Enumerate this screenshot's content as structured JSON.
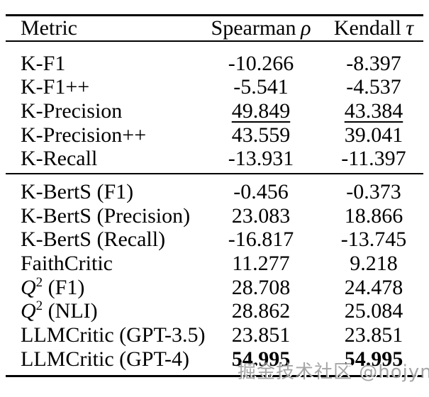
{
  "table": {
    "headers": [
      {
        "label": "Metric",
        "symbol": ""
      },
      {
        "label": "Spearman",
        "symbol": "ρ"
      },
      {
        "label": "Kendall",
        "symbol": "τ"
      }
    ],
    "rows": [
      {
        "metric": {
          "pre": "K-F1",
          "it": "",
          "sup": "",
          "post": ""
        },
        "spearman": "-10.266",
        "kendall": "-8.397",
        "emphasis": "none"
      },
      {
        "metric": {
          "pre": "K-F1++",
          "it": "",
          "sup": "",
          "post": ""
        },
        "spearman": "-5.541",
        "kendall": "-4.537",
        "emphasis": "none"
      },
      {
        "metric": {
          "pre": "K-Precision",
          "it": "",
          "sup": "",
          "post": ""
        },
        "spearman": "49.849",
        "kendall": "43.384",
        "emphasis": "underline"
      },
      {
        "metric": {
          "pre": "K-Precision++",
          "it": "",
          "sup": "",
          "post": ""
        },
        "spearman": "43.559",
        "kendall": "39.041",
        "emphasis": "none"
      },
      {
        "metric": {
          "pre": "K-Recall",
          "it": "",
          "sup": "",
          "post": ""
        },
        "spearman": "-13.931",
        "kendall": "-11.397",
        "emphasis": "none"
      },
      {
        "metric": {
          "pre": "K-BertS (F1)",
          "it": "",
          "sup": "",
          "post": ""
        },
        "spearman": "-0.456",
        "kendall": "-0.373",
        "emphasis": "none"
      },
      {
        "metric": {
          "pre": "K-BertS (Precision)",
          "it": "",
          "sup": "",
          "post": ""
        },
        "spearman": "23.083",
        "kendall": "18.866",
        "emphasis": "none"
      },
      {
        "metric": {
          "pre": "K-BertS (Recall)",
          "it": "",
          "sup": "",
          "post": ""
        },
        "spearman": "-16.817",
        "kendall": "-13.745",
        "emphasis": "none"
      },
      {
        "metric": {
          "pre": "FaithCritic",
          "it": "",
          "sup": "",
          "post": ""
        },
        "spearman": "11.277",
        "kendall": "9.218",
        "emphasis": "none"
      },
      {
        "metric": {
          "pre": "",
          "it": "Q",
          "sup": "2",
          "post": " (F1)"
        },
        "spearman": "28.708",
        "kendall": "24.478",
        "emphasis": "none"
      },
      {
        "metric": {
          "pre": "",
          "it": "Q",
          "sup": "2",
          "post": " (NLI)"
        },
        "spearman": "28.862",
        "kendall": "25.084",
        "emphasis": "none"
      },
      {
        "metric": {
          "pre": "LLMCritic (GPT-3.5)",
          "it": "",
          "sup": "",
          "post": ""
        },
        "spearman": "23.851",
        "kendall": "23.851",
        "emphasis": "none"
      },
      {
        "metric": {
          "pre": "LLMCritic (GPT-4)",
          "it": "",
          "sup": "",
          "post": ""
        },
        "spearman": "54.995",
        "kendall": "54.995",
        "emphasis": "bold"
      }
    ]
  },
  "watermark": {
    "text": "掘金技术社区 @hojyn"
  },
  "colors": {
    "background": "#ffffff",
    "text": "#000000",
    "rule": "#000000",
    "watermark": "#969696"
  }
}
